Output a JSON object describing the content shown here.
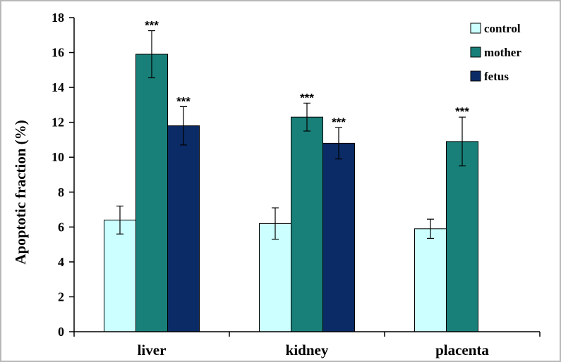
{
  "chart_data": {
    "type": "bar",
    "ylabel": "Apoptotic fraction (%)",
    "ylim": [
      0,
      18
    ],
    "yticks": [
      0,
      2,
      4,
      6,
      8,
      10,
      12,
      14,
      16,
      18
    ],
    "categories": [
      "liver",
      "kidney",
      "placenta"
    ],
    "series": [
      {
        "name": "control",
        "color": "#ccffff",
        "values": [
          6.4,
          6.2,
          5.9
        ],
        "errors": [
          0.8,
          0.9,
          0.55
        ],
        "significance": [
          "",
          "",
          ""
        ]
      },
      {
        "name": "mother",
        "color": "#188079",
        "values": [
          15.9,
          12.3,
          10.9
        ],
        "errors": [
          1.35,
          0.8,
          1.4
        ],
        "significance": [
          "***",
          "***",
          "***"
        ]
      },
      {
        "name": "fetus",
        "color": "#0b2b66",
        "values": [
          11.8,
          10.8,
          null
        ],
        "errors": [
          1.1,
          0.9,
          null
        ],
        "significance": [
          "***",
          "***",
          ""
        ]
      }
    ],
    "legend_position": "top-right",
    "grid": false
  }
}
